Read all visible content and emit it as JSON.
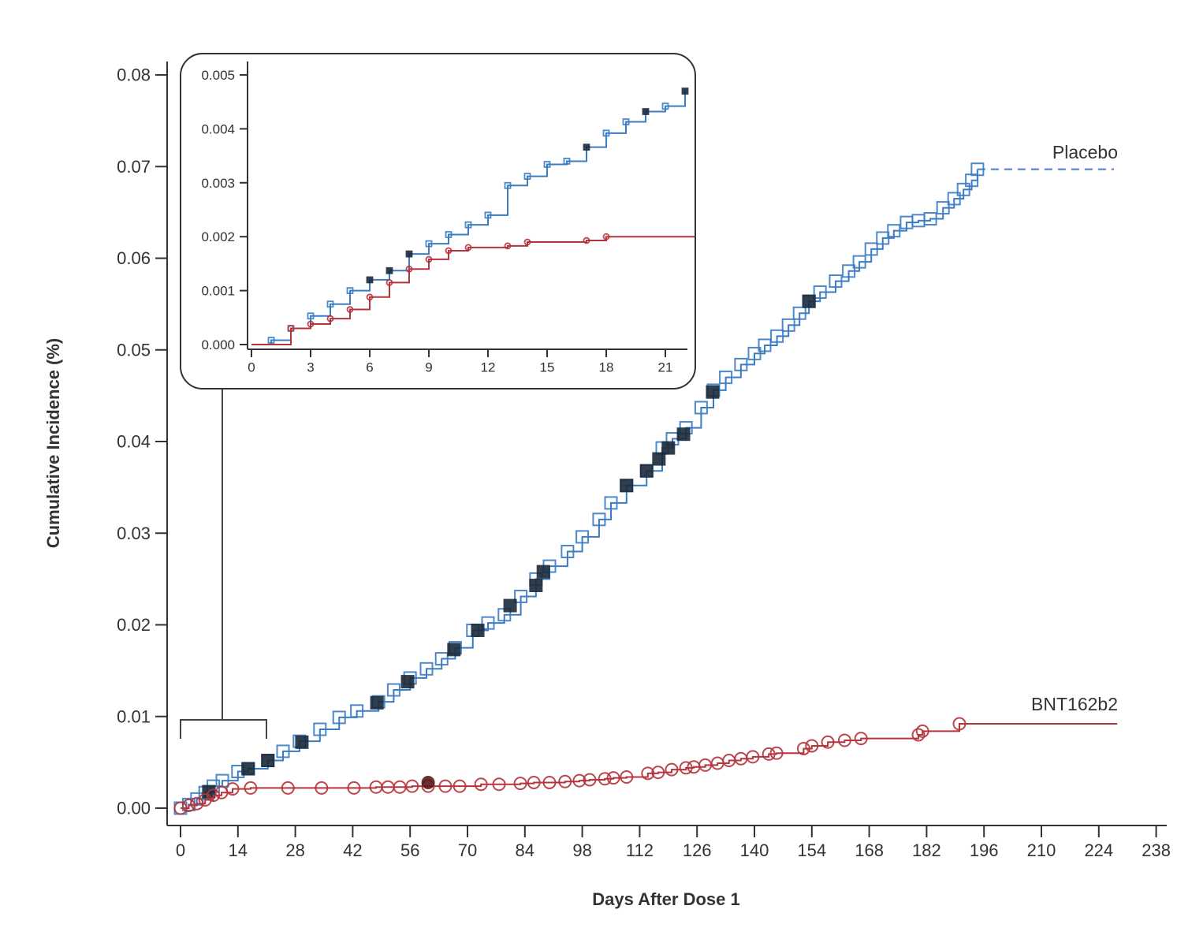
{
  "chart_data": [
    {
      "type": "line",
      "subtype": "step",
      "xlabel": "Days After Dose 1",
      "ylabel": "Cumulative Incidence (%)",
      "xlim": [
        0,
        238
      ],
      "ylim": [
        0,
        0.08
      ],
      "xticks": [
        "0",
        "14",
        "28",
        "42",
        "56",
        "70",
        "84",
        "98",
        "112",
        "126",
        "140",
        "154",
        "168",
        "182",
        "196",
        "210",
        "224",
        "238"
      ],
      "yticks": [
        "0.00",
        "0.01",
        "0.02",
        "0.03",
        "0.04",
        "0.05",
        "0.06",
        "0.07",
        "0.08"
      ],
      "grid": false,
      "series": [
        {
          "name": "Placebo",
          "color": "#3a7cc4",
          "marker": "square",
          "points": [
            [
              0,
              0
            ],
            [
              2,
              0.0004
            ],
            [
              4,
              0.001
            ],
            [
              6,
              0.0017
            ],
            [
              8,
              0.0024
            ],
            [
              10.2,
              0.003
            ],
            [
              14,
              0.004
            ],
            [
              16.5,
              0.0043
            ],
            [
              21.3,
              0.0052
            ],
            [
              25,
              0.0062
            ],
            [
              29,
              0.0073
            ],
            [
              34,
              0.0086
            ],
            [
              38.7,
              0.0099
            ],
            [
              43,
              0.0106
            ],
            [
              48.3,
              0.0116
            ],
            [
              52,
              0.0129
            ],
            [
              56,
              0.0142
            ],
            [
              60,
              0.0152
            ],
            [
              63.7,
              0.0163
            ],
            [
              67,
              0.0175
            ],
            [
              71.3,
              0.0194
            ],
            [
              75,
              0.0202
            ],
            [
              79,
              0.0211
            ],
            [
              83,
              0.0231
            ],
            [
              86.7,
              0.025
            ],
            [
              90,
              0.0264
            ],
            [
              94.4,
              0.028
            ],
            [
              98,
              0.0296
            ],
            [
              102.1,
              0.0315
            ],
            [
              105,
              0.0333
            ],
            [
              108.8,
              0.0352
            ],
            [
              113.7,
              0.0368
            ],
            [
              117.5,
              0.0393
            ],
            [
              120,
              0.0403
            ],
            [
              123.3,
              0.0415
            ],
            [
              127,
              0.0437
            ],
            [
              130,
              0.0456
            ],
            [
              133,
              0.047
            ],
            [
              136.7,
              0.0484
            ],
            [
              140,
              0.0496
            ],
            [
              142.5,
              0.0505
            ],
            [
              145.5,
              0.0515
            ],
            [
              148.3,
              0.0527
            ],
            [
              151,
              0.054
            ],
            [
              153.3,
              0.0553
            ],
            [
              156,
              0.0563
            ],
            [
              159.8,
              0.0575
            ],
            [
              163,
              0.0586
            ],
            [
              165.6,
              0.0596
            ],
            [
              168.5,
              0.061
            ],
            [
              171.3,
              0.0622
            ],
            [
              174,
              0.063
            ],
            [
              177.1,
              0.0639
            ],
            [
              180,
              0.0641
            ],
            [
              182.9,
              0.0643
            ],
            [
              186,
              0.0655
            ],
            [
              188.7,
              0.0665
            ],
            [
              191,
              0.0675
            ],
            [
              193,
              0.0685
            ],
            [
              194.4,
              0.0697
            ]
          ],
          "filled_points": [
            [
              6.9,
              0.0018
            ],
            [
              16.5,
              0.0043
            ],
            [
              21.3,
              0.0052
            ],
            [
              29.6,
              0.0072
            ],
            [
              47.9,
              0.0115
            ],
            [
              55.4,
              0.0138
            ],
            [
              66.7,
              0.0173
            ],
            [
              72.5,
              0.0194
            ],
            [
              80.4,
              0.0221
            ],
            [
              86.7,
              0.0243
            ],
            [
              88.5,
              0.0258
            ],
            [
              108.8,
              0.0352
            ],
            [
              113.7,
              0.0368
            ],
            [
              116.7,
              0.0381
            ],
            [
              119,
              0.0393
            ],
            [
              122.7,
              0.0408
            ],
            [
              129.8,
              0.0454
            ],
            [
              153.3,
              0.0553
            ]
          ],
          "dashed_to": 227.7
        },
        {
          "name": "BNT162b2",
          "color": "#b5333b",
          "marker": "circle",
          "points": [
            [
              0,
              0
            ],
            [
              2,
              0.0003
            ],
            [
              4,
              0.0005
            ],
            [
              6,
              0.0009
            ],
            [
              8,
              0.0014
            ],
            [
              10,
              0.0017
            ],
            [
              12.7,
              0.0021
            ],
            [
              17.1,
              0.0022
            ],
            [
              26.2,
              0.0022
            ],
            [
              34.4,
              0.0022
            ],
            [
              42.3,
              0.0022
            ],
            [
              47.7,
              0.0023
            ],
            [
              50.6,
              0.0023
            ],
            [
              53.5,
              0.0023
            ],
            [
              56.5,
              0.0024
            ],
            [
              60.4,
              0.0024
            ],
            [
              64.6,
              0.0024
            ],
            [
              68.1,
              0.0024
            ],
            [
              73.3,
              0.0026
            ],
            [
              77.7,
              0.0026
            ],
            [
              82.9,
              0.0027
            ],
            [
              86.2,
              0.0028
            ],
            [
              90,
              0.0028
            ],
            [
              93.8,
              0.0029
            ],
            [
              97.3,
              0.003
            ],
            [
              99.8,
              0.0031
            ],
            [
              103.5,
              0.0032
            ],
            [
              105.6,
              0.0033
            ],
            [
              108.8,
              0.0034
            ],
            [
              114,
              0.0038
            ],
            [
              116.5,
              0.0039
            ],
            [
              119.8,
              0.0042
            ],
            [
              123.3,
              0.0044
            ],
            [
              125.2,
              0.0045
            ],
            [
              128,
              0.0047
            ],
            [
              131,
              0.0049
            ],
            [
              133.8,
              0.0052
            ],
            [
              136.7,
              0.0054
            ],
            [
              139.6,
              0.0056
            ],
            [
              143.5,
              0.0059
            ],
            [
              145.4,
              0.006
            ],
            [
              152,
              0.0065
            ],
            [
              154,
              0.0068
            ],
            [
              157.9,
              0.0072
            ],
            [
              162,
              0.0074
            ],
            [
              166,
              0.0076
            ],
            [
              180,
              0.008
            ],
            [
              181,
              0.0084
            ],
            [
              190,
              0.0092
            ]
          ],
          "filled_points": [
            [
              60.4,
              0.0028
            ]
          ],
          "solid_to": 228.5
        }
      ]
    },
    {
      "type": "line",
      "subtype": "step",
      "title": "",
      "xlim": [
        0,
        22
      ],
      "ylim": [
        0,
        0.005
      ],
      "xticks": [
        "0",
        "3",
        "6",
        "9",
        "12",
        "15",
        "18",
        "21"
      ],
      "yticks": [
        "0.000",
        "0.001",
        "0.002",
        "0.003",
        "0.004",
        "0.005"
      ],
      "grid": false,
      "series": [
        {
          "name": "Placebo",
          "color": "#3a7cc4",
          "marker": "square",
          "points": [
            [
              0,
              0
            ],
            [
              1,
              8e-05
            ],
            [
              2,
              0.0003
            ],
            [
              3,
              0.00053
            ],
            [
              4,
              0.00075
            ],
            [
              5,
              0.001
            ],
            [
              6,
              0.0012
            ],
            [
              7,
              0.00137
            ],
            [
              8,
              0.00168
            ],
            [
              9,
              0.00187
            ],
            [
              10,
              0.00204
            ],
            [
              11,
              0.00222
            ],
            [
              12,
              0.0024
            ],
            [
              13,
              0.00295
            ],
            [
              14,
              0.00312
            ],
            [
              15,
              0.00334
            ],
            [
              16,
              0.0034
            ],
            [
              17,
              0.00366
            ],
            [
              18,
              0.00392
            ],
            [
              19,
              0.00413
            ],
            [
              20,
              0.00432
            ],
            [
              21,
              0.00442
            ],
            [
              22,
              0.0047
            ]
          ],
          "filled_days": [
            6,
            7,
            8,
            17,
            20,
            22
          ]
        },
        {
          "name": "BNT162b2",
          "color": "#b5333b",
          "marker": "circle",
          "points": [
            [
              0,
              0
            ],
            [
              2,
              0.0003
            ],
            [
              3,
              0.00038
            ],
            [
              4,
              0.00048
            ],
            [
              5,
              0.00065
            ],
            [
              6,
              0.00088
            ],
            [
              7,
              0.00115
            ],
            [
              8,
              0.0014
            ],
            [
              9,
              0.00158
            ],
            [
              10,
              0.00174
            ],
            [
              11,
              0.0018
            ],
            [
              13,
              0.00183
            ],
            [
              14,
              0.0019
            ],
            [
              17,
              0.00193
            ],
            [
              18,
              0.002
            ]
          ],
          "solid_to": 22.5
        }
      ]
    }
  ],
  "labels": {
    "placebo": "Placebo",
    "bnt": "BNT162b2",
    "xlabel": "Days After Dose 1",
    "ylabel": "Cumulative Incidence (%)"
  }
}
